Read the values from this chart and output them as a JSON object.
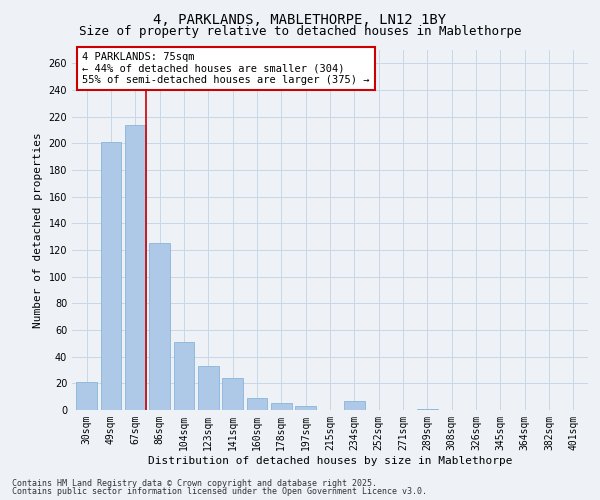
{
  "title_line1": "4, PARKLANDS, MABLETHORPE, LN12 1BY",
  "title_line2": "Size of property relative to detached houses in Mablethorpe",
  "xlabel": "Distribution of detached houses by size in Mablethorpe",
  "ylabel": "Number of detached properties",
  "categories": [
    "30sqm",
    "49sqm",
    "67sqm",
    "86sqm",
    "104sqm",
    "123sqm",
    "141sqm",
    "160sqm",
    "178sqm",
    "197sqm",
    "215sqm",
    "234sqm",
    "252sqm",
    "271sqm",
    "289sqm",
    "308sqm",
    "326sqm",
    "345sqm",
    "364sqm",
    "382sqm",
    "401sqm"
  ],
  "values": [
    21,
    201,
    214,
    125,
    51,
    33,
    24,
    9,
    5,
    3,
    0,
    7,
    0,
    0,
    1,
    0,
    0,
    0,
    0,
    0,
    0
  ],
  "bar_color": "#aec9e8",
  "bar_edge_color": "#7aafd4",
  "vline_color": "#cc0000",
  "annotation_text": "4 PARKLANDS: 75sqm\n← 44% of detached houses are smaller (304)\n55% of semi-detached houses are larger (375) →",
  "annotation_box_facecolor": "#ffffff",
  "annotation_box_edgecolor": "#cc0000",
  "ylim": [
    0,
    270
  ],
  "yticks": [
    0,
    20,
    40,
    60,
    80,
    100,
    120,
    140,
    160,
    180,
    200,
    220,
    240,
    260
  ],
  "grid_color": "#c8d8e8",
  "background_color": "#eef2f7",
  "footnote_line1": "Contains HM Land Registry data © Crown copyright and database right 2025.",
  "footnote_line2": "Contains public sector information licensed under the Open Government Licence v3.0.",
  "title_fontsize": 10,
  "subtitle_fontsize": 9,
  "axis_label_fontsize": 8,
  "tick_fontsize": 7,
  "annotation_fontsize": 7.5,
  "footnote_fontsize": 6
}
